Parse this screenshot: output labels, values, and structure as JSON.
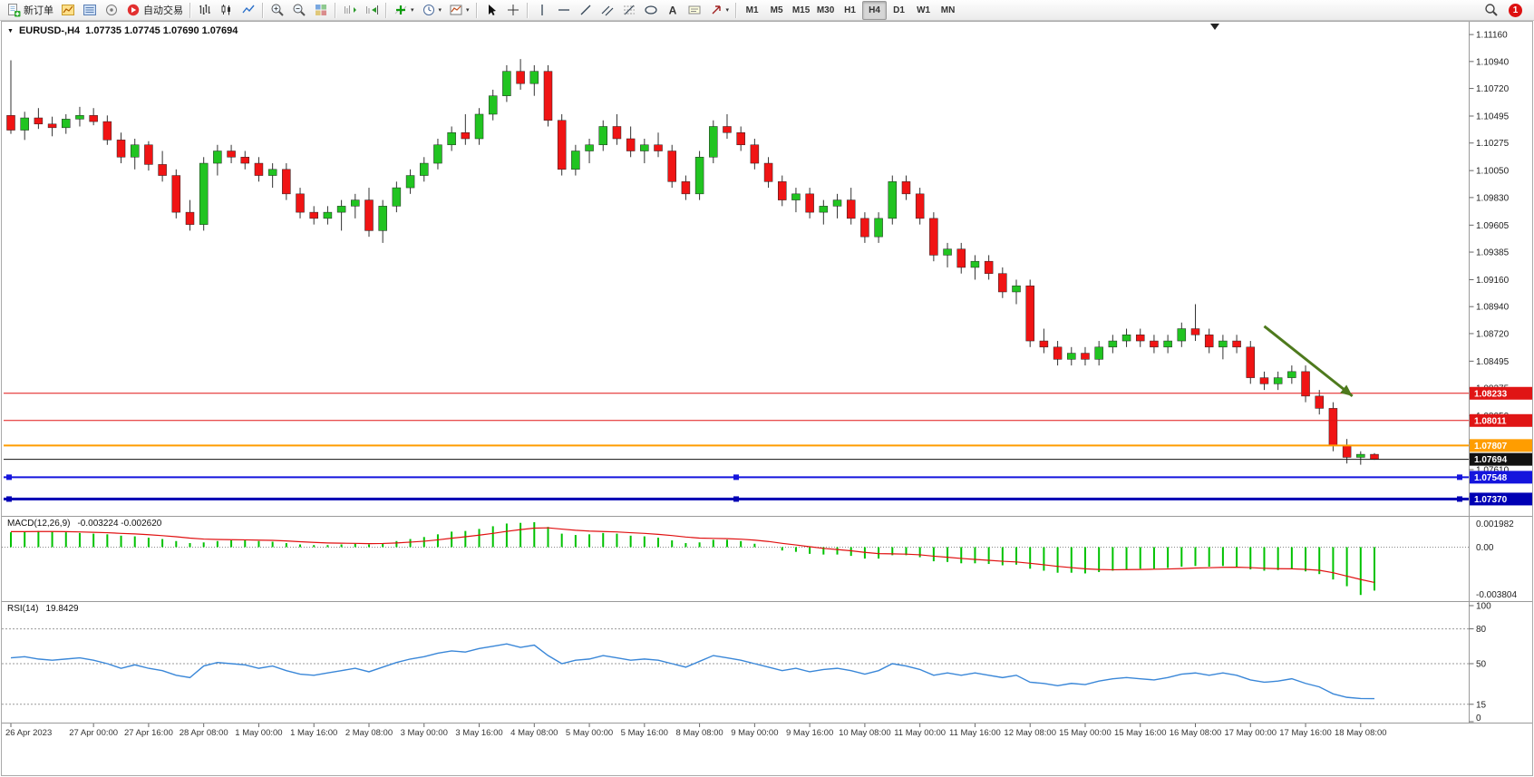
{
  "icons": {
    "caret_down": "▾",
    "marker_down": "▼"
  },
  "toolbar": {
    "new_order_label": "新订单",
    "autotrading_label": "自动交易",
    "timeframes": [
      "M1",
      "M5",
      "M15",
      "M30",
      "H1",
      "H4",
      "D1",
      "W1",
      "MN"
    ],
    "active_timeframe": "H4",
    "notification_count": "1"
  },
  "chart": {
    "symbol_period": "EURUSD-,H4",
    "ohlc_text": "1.07735 1.07745 1.07690 1.07694"
  },
  "colors": {
    "bull": "#21c421",
    "bear": "#f01414",
    "wick": "#333333",
    "candle_border": "#222222",
    "separator": "#9a9a9a",
    "axis_text": "#222222",
    "date_text": "#333333"
  },
  "chart_data": {
    "type": "candlestick",
    "title": "EURUSD-,H4",
    "ylim": [
      1.0724,
      1.1122
    ],
    "price_ticks": [
      "1.11160",
      "1.10940",
      "1.10720",
      "1.10495",
      "1.10275",
      "1.10050",
      "1.09830",
      "1.09605",
      "1.09385",
      "1.09160",
      "1.08940",
      "1.08720",
      "1.08495",
      "1.08275",
      "1.08050",
      "1.07830",
      "1.07610",
      "1.07390"
    ],
    "x_ticks": [
      {
        "bar": 0,
        "label": "26 Apr 2023"
      },
      {
        "bar": 6,
        "label": "27 Apr 00:00"
      },
      {
        "bar": 10,
        "label": "27 Apr 16:00"
      },
      {
        "bar": 14,
        "label": "28 Apr 08:00"
      },
      {
        "bar": 18,
        "label": "1 May 00:00"
      },
      {
        "bar": 22,
        "label": "1 May 16:00"
      },
      {
        "bar": 26,
        "label": "2 May 08:00"
      },
      {
        "bar": 30,
        "label": "3 May 00:00"
      },
      {
        "bar": 34,
        "label": "3 May 16:00"
      },
      {
        "bar": 38,
        "label": "4 May 08:00"
      },
      {
        "bar": 42,
        "label": "5 May 00:00"
      },
      {
        "bar": 46,
        "label": "5 May 16:00"
      },
      {
        "bar": 50,
        "label": "8 May 08:00"
      },
      {
        "bar": 54,
        "label": "9 May 00:00"
      },
      {
        "bar": 58,
        "label": "9 May 16:00"
      },
      {
        "bar": 62,
        "label": "10 May 08:00"
      },
      {
        "bar": 66,
        "label": "11 May 00:00"
      },
      {
        "bar": 70,
        "label": "11 May 16:00"
      },
      {
        "bar": 74,
        "label": "12 May 08:00"
      },
      {
        "bar": 78,
        "label": "15 May 00:00"
      },
      {
        "bar": 82,
        "label": "15 May 16:00"
      },
      {
        "bar": 86,
        "label": "16 May 08:00"
      },
      {
        "bar": 90,
        "label": "17 May 00:00"
      },
      {
        "bar": 94,
        "label": "17 May 16:00"
      },
      {
        "bar": 98,
        "label": "18 May 08:00"
      }
    ],
    "candles": [
      [
        1.105,
        1.1095,
        1.1035,
        1.1038
      ],
      [
        1.1038,
        1.1053,
        1.103,
        1.1048
      ],
      [
        1.1048,
        1.1056,
        1.1039,
        1.1043
      ],
      [
        1.1043,
        1.1049,
        1.1033,
        1.104
      ],
      [
        1.104,
        1.1051,
        1.1035,
        1.1047
      ],
      [
        1.1047,
        1.1057,
        1.1041,
        1.105
      ],
      [
        1.105,
        1.1056,
        1.1042,
        1.1045
      ],
      [
        1.1045,
        1.105,
        1.1026,
        1.103
      ],
      [
        1.103,
        1.1036,
        1.1011,
        1.1016
      ],
      [
        1.1016,
        1.1031,
        1.1006,
        1.1026
      ],
      [
        1.1026,
        1.1029,
        1.1005,
        1.101
      ],
      [
        1.101,
        1.1021,
        1.0996,
        1.1001
      ],
      [
        1.1001,
        1.1006,
        1.0966,
        1.0971
      ],
      [
        1.0971,
        1.0981,
        1.0956,
        1.0961
      ],
      [
        1.0961,
        1.1016,
        1.0956,
        1.1011
      ],
      [
        1.1011,
        1.1026,
        1.1001,
        1.1021
      ],
      [
        1.1021,
        1.1026,
        1.1011,
        1.1016
      ],
      [
        1.1016,
        1.1021,
        1.1006,
        1.1011
      ],
      [
        1.1011,
        1.1016,
        1.0996,
        1.1001
      ],
      [
        1.1001,
        1.1011,
        1.0991,
        1.1006
      ],
      [
        1.1006,
        1.1011,
        1.0981,
        1.0986
      ],
      [
        1.0986,
        1.0991,
        1.0966,
        1.0971
      ],
      [
        1.0971,
        1.0976,
        1.0961,
        1.0966
      ],
      [
        1.0966,
        1.0976,
        1.0961,
        1.0971
      ],
      [
        1.0971,
        1.0981,
        1.0956,
        1.0976
      ],
      [
        1.0976,
        1.0986,
        1.0966,
        1.0981
      ],
      [
        1.0981,
        1.0991,
        1.0951,
        1.0956
      ],
      [
        1.0956,
        1.0981,
        1.0946,
        1.0976
      ],
      [
        1.0976,
        1.0996,
        1.0971,
        1.0991
      ],
      [
        1.0991,
        1.1006,
        1.0986,
        1.1001
      ],
      [
        1.1001,
        1.1016,
        1.0996,
        1.1011
      ],
      [
        1.1011,
        1.1031,
        1.1006,
        1.1026
      ],
      [
        1.1026,
        1.1041,
        1.1021,
        1.1036
      ],
      [
        1.1036,
        1.1051,
        1.1026,
        1.1031
      ],
      [
        1.1031,
        1.1056,
        1.1026,
        1.1051
      ],
      [
        1.1051,
        1.1071,
        1.1046,
        1.1066
      ],
      [
        1.1066,
        1.1091,
        1.1061,
        1.1086
      ],
      [
        1.1086,
        1.1096,
        1.1071,
        1.1076
      ],
      [
        1.1076,
        1.1091,
        1.1066,
        1.1086
      ],
      [
        1.1086,
        1.1091,
        1.1041,
        1.1046
      ],
      [
        1.1046,
        1.1051,
        1.1001,
        1.1006
      ],
      [
        1.1006,
        1.1026,
        1.1001,
        1.1021
      ],
      [
        1.1021,
        1.1031,
        1.1011,
        1.1026
      ],
      [
        1.1026,
        1.1046,
        1.1021,
        1.1041
      ],
      [
        1.1041,
        1.1051,
        1.1026,
        1.1031
      ],
      [
        1.1031,
        1.1041,
        1.1016,
        1.1021
      ],
      [
        1.1021,
        1.1031,
        1.1011,
        1.1026
      ],
      [
        1.1026,
        1.1036,
        1.1016,
        1.1021
      ],
      [
        1.1021,
        1.1026,
        1.0991,
        1.0996
      ],
      [
        1.0996,
        1.1001,
        1.0981,
        1.0986
      ],
      [
        1.0986,
        1.1021,
        1.0981,
        1.1016
      ],
      [
        1.1016,
        1.1046,
        1.1011,
        1.1041
      ],
      [
        1.1041,
        1.1051,
        1.1031,
        1.1036
      ],
      [
        1.1036,
        1.1041,
        1.1021,
        1.1026
      ],
      [
        1.1026,
        1.1031,
        1.1006,
        1.1011
      ],
      [
        1.1011,
        1.1016,
        1.0991,
        1.0996
      ],
      [
        1.0996,
        1.1001,
        1.0976,
        1.0981
      ],
      [
        1.0981,
        1.0991,
        1.0971,
        1.0986
      ],
      [
        1.0986,
        1.0991,
        1.0966,
        1.0971
      ],
      [
        1.0971,
        1.0981,
        1.0961,
        1.0976
      ],
      [
        1.0976,
        1.0986,
        1.0966,
        1.0981
      ],
      [
        1.0981,
        1.0991,
        1.0961,
        1.0966
      ],
      [
        1.0966,
        1.0971,
        1.0946,
        1.0951
      ],
      [
        1.0951,
        1.0971,
        1.0946,
        1.0966
      ],
      [
        1.0966,
        1.1001,
        1.0961,
        1.0996
      ],
      [
        1.0996,
        1.1001,
        1.0981,
        1.0986
      ],
      [
        1.0986,
        1.0991,
        1.0961,
        1.0966
      ],
      [
        1.0966,
        1.0971,
        1.0931,
        1.0936
      ],
      [
        1.0936,
        1.0946,
        1.0926,
        1.0941
      ],
      [
        1.0941,
        1.0946,
        1.0921,
        1.0926
      ],
      [
        1.0926,
        1.0936,
        1.0916,
        1.0931
      ],
      [
        1.0931,
        1.0936,
        1.0916,
        1.0921
      ],
      [
        1.0921,
        1.0926,
        1.0901,
        1.0906
      ],
      [
        1.0906,
        1.0916,
        1.0896,
        1.0911
      ],
      [
        1.0911,
        1.0916,
        1.0861,
        1.0866
      ],
      [
        1.0866,
        1.0876,
        1.0856,
        1.0861
      ],
      [
        1.0861,
        1.0866,
        1.0846,
        1.0851
      ],
      [
        1.0851,
        1.0861,
        1.0846,
        1.0856
      ],
      [
        1.0856,
        1.0861,
        1.0846,
        1.0851
      ],
      [
        1.0851,
        1.0866,
        1.0846,
        1.0861
      ],
      [
        1.0861,
        1.0871,
        1.0856,
        1.0866
      ],
      [
        1.0866,
        1.0876,
        1.0861,
        1.0871
      ],
      [
        1.0871,
        1.0876,
        1.0861,
        1.0866
      ],
      [
        1.0866,
        1.0871,
        1.0856,
        1.0861
      ],
      [
        1.0861,
        1.0871,
        1.0856,
        1.0866
      ],
      [
        1.0866,
        1.0881,
        1.0861,
        1.0876
      ],
      [
        1.0876,
        1.0896,
        1.0866,
        1.0871
      ],
      [
        1.0871,
        1.0876,
        1.0856,
        1.0861
      ],
      [
        1.0861,
        1.0871,
        1.0851,
        1.0866
      ],
      [
        1.0866,
        1.0871,
        1.0856,
        1.0861
      ],
      [
        1.0861,
        1.0866,
        1.0831,
        1.0836
      ],
      [
        1.0836,
        1.0841,
        1.0826,
        1.0831
      ],
      [
        1.0831,
        1.0841,
        1.0826,
        1.0836
      ],
      [
        1.0836,
        1.0846,
        1.0831,
        1.0841
      ],
      [
        1.0841,
        1.0846,
        1.0816,
        1.0821
      ],
      [
        1.0821,
        1.0826,
        1.0806,
        1.0811
      ],
      [
        1.0811,
        1.0816,
        1.0776,
        1.0781
      ],
      [
        1.0781,
        1.0786,
        1.0766,
        1.0771
      ],
      [
        1.0771,
        1.0776,
        1.0765,
        1.07735
      ],
      [
        1.07735,
        1.07745,
        1.0769,
        1.07694
      ]
    ],
    "hlines": [
      {
        "price": 1.08233,
        "label": "1.08233",
        "color": "#e01515",
        "width": 1
      },
      {
        "price": 1.08011,
        "label": "1.08011",
        "color": "#e01515",
        "width": 1
      },
      {
        "price": 1.07807,
        "label": "1.07807",
        "color": "#ff9d00",
        "width": 2
      },
      {
        "price": 1.07694,
        "label": "1.07694",
        "color": "#111111",
        "width": 1,
        "current": true
      },
      {
        "price": 1.07548,
        "label": "1.07548",
        "color": "#1515dd",
        "width": 2,
        "handles": true
      },
      {
        "price": 1.0737,
        "label": "1.07370",
        "color": "#0000b4",
        "width": 3,
        "handles": true
      }
    ],
    "arrow": {
      "from_bar": 91,
      "from_price": 1.0878,
      "to_bar": 97.4,
      "to_price": 1.0821,
      "color": "#4e7a1d"
    },
    "macd": {
      "title": "MACD(12,26,9)",
      "display_values": "-0.003224 -0.002620",
      "ylim": [
        -0.003804,
        0.001982
      ],
      "axis_labels": [
        "0.001982",
        "0.00",
        "-0.003804"
      ],
      "hist_color": "#00c200",
      "signal_color": "#e01010",
      "hist": [
        0.0011,
        0.00115,
        0.0012,
        0.00115,
        0.0011,
        0.00105,
        0.001,
        0.00095,
        0.00085,
        0.0008,
        0.0007,
        0.0006,
        0.00045,
        0.0003,
        0.00035,
        0.00045,
        0.0005,
        0.0005,
        0.00045,
        0.0004,
        0.0003,
        0.0002,
        0.00015,
        0.00015,
        0.0002,
        0.00025,
        0.0002,
        0.0003,
        0.00045,
        0.0006,
        0.00075,
        0.00095,
        0.00115,
        0.0012,
        0.00135,
        0.00155,
        0.00175,
        0.0018,
        0.00185,
        0.0015,
        0.001,
        0.0009,
        0.00095,
        0.00105,
        0.001,
        0.00085,
        0.0008,
        0.0007,
        0.0005,
        0.0003,
        0.00035,
        0.00055,
        0.00055,
        0.00045,
        0.00025,
        0.0,
        -0.00025,
        -0.00035,
        -0.0005,
        -0.00055,
        -0.00055,
        -0.00065,
        -0.00085,
        -0.00085,
        -0.0006,
        -0.0006,
        -0.00075,
        -0.00105,
        -0.0011,
        -0.0012,
        -0.0012,
        -0.00125,
        -0.00135,
        -0.0013,
        -0.0016,
        -0.00175,
        -0.0019,
        -0.0019,
        -0.00195,
        -0.00185,
        -0.00175,
        -0.00165,
        -0.0016,
        -0.0016,
        -0.00155,
        -0.00145,
        -0.0014,
        -0.00145,
        -0.0014,
        -0.00145,
        -0.00165,
        -0.00175,
        -0.0017,
        -0.00165,
        -0.0018,
        -0.002,
        -0.0024,
        -0.0029,
        -0.00355,
        -0.003224
      ],
      "signal": [
        0.00115,
        0.00115,
        0.00116,
        0.00116,
        0.00115,
        0.00113,
        0.0011,
        0.00107,
        0.00102,
        0.00098,
        0.00092,
        0.00085,
        0.00077,
        0.00067,
        0.0006,
        0.00057,
        0.00055,
        0.00054,
        0.00052,
        0.0005,
        0.00046,
        0.0004,
        0.00035,
        0.00031,
        0.00029,
        0.00028,
        0.00026,
        0.00027,
        0.00031,
        0.00037,
        0.00044,
        0.00054,
        0.00066,
        0.00077,
        0.00089,
        0.00102,
        0.00117,
        0.0013,
        0.00141,
        0.00143,
        0.00134,
        0.00125,
        0.00119,
        0.00116,
        0.00113,
        0.00107,
        0.00102,
        0.00095,
        0.00086,
        0.00075,
        0.00067,
        0.00065,
        0.00063,
        0.00059,
        0.00052,
        0.00042,
        0.00028,
        0.00016,
        3e-05,
        -9e-05,
        -0.00018,
        -0.00027,
        -0.00039,
        -0.00048,
        -0.0005,
        -0.00052,
        -0.00057,
        -0.00067,
        -0.00075,
        -0.00084,
        -0.00091,
        -0.00098,
        -0.00105,
        -0.0011,
        -0.0012,
        -0.00131,
        -0.00143,
        -0.00152,
        -0.00161,
        -0.00166,
        -0.00168,
        -0.00167,
        -0.00166,
        -0.00164,
        -0.00162,
        -0.00159,
        -0.00155,
        -0.00153,
        -0.0015,
        -0.00149,
        -0.00152,
        -0.00157,
        -0.0016,
        -0.00161,
        -0.00165,
        -0.00172,
        -0.0019,
        -0.00215,
        -0.0024,
        -0.00262
      ]
    },
    "rsi": {
      "title": "RSI(14)",
      "display_value": "19.8429",
      "ylim": [
        0,
        100
      ],
      "levels": [
        80,
        50,
        15
      ],
      "axis_labels": [
        "100",
        "80",
        "50",
        "15",
        "0"
      ],
      "color": "#3a87d8",
      "values": [
        55,
        56,
        54,
        53,
        54,
        55,
        53,
        50,
        46,
        49,
        46,
        44,
        40,
        38,
        48,
        51,
        50,
        49,
        46,
        48,
        44,
        41,
        40,
        42,
        44,
        46,
        43,
        47,
        51,
        54,
        56,
        59,
        61,
        60,
        63,
        65,
        67,
        64,
        66,
        57,
        50,
        53,
        54,
        57,
        55,
        53,
        54,
        53,
        50,
        47,
        52,
        57,
        55,
        53,
        50,
        47,
        44,
        46,
        43,
        45,
        46,
        44,
        41,
        44,
        50,
        48,
        45,
        40,
        42,
        40,
        42,
        40,
        38,
        40,
        34,
        33,
        31,
        33,
        32,
        35,
        37,
        38,
        37,
        36,
        38,
        41,
        42,
        40,
        42,
        40,
        36,
        34,
        35,
        37,
        33,
        30,
        24,
        21,
        20,
        19.84
      ]
    }
  }
}
